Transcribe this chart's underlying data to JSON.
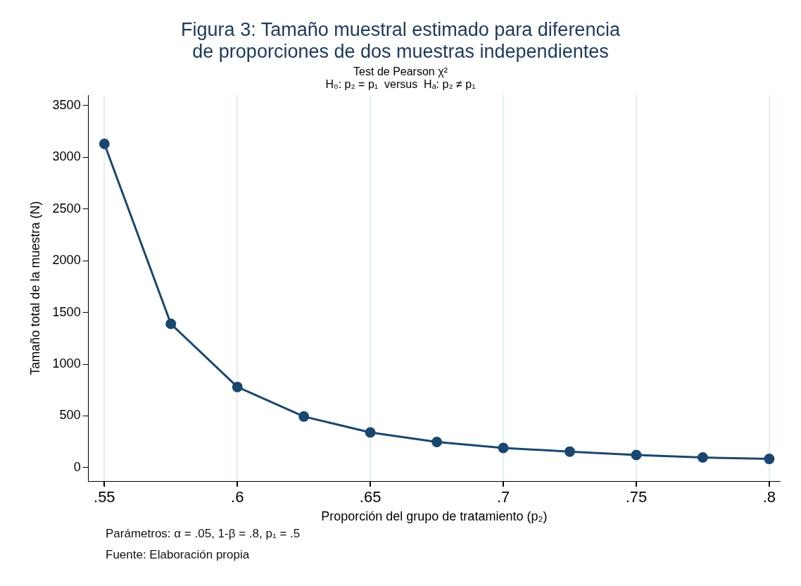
{
  "chart_data": {
    "type": "line",
    "title": "Figura 3: Tamaño muestral estimado para diferencia\nde proporciones de dos muestras independientes",
    "subtitle": "Test de Pearson χ²\nH₀: p₂ = p₁  versus  Hₐ: p₂ ≠ p₁",
    "xlabel": "Proporción del grupo de tratamiento (p₂)",
    "ylabel": "Tamaño total de la muestra (N)",
    "x": [
      0.55,
      0.575,
      0.6,
      0.625,
      0.65,
      0.675,
      0.7,
      0.725,
      0.75,
      0.775,
      0.8
    ],
    "series": [
      {
        "color": "#1a476f",
        "values": [
          3130,
          1390,
          780,
          494,
          340,
          248,
          190,
          155,
          122,
          98,
          84
        ]
      }
    ],
    "xlim": [
      0.544,
      0.804
    ],
    "xticks": [
      {
        "value": 0.55,
        "label": ".55"
      },
      {
        "value": 0.6,
        "label": ".6"
      },
      {
        "value": 0.65,
        "label": ".65"
      },
      {
        "value": 0.7,
        "label": ".7"
      },
      {
        "value": 0.75,
        "label": ".75"
      },
      {
        "value": 0.8,
        "label": ".8"
      }
    ],
    "ylim": [
      -130,
      3600
    ],
    "yticks": [
      0,
      500,
      1000,
      1500,
      2000,
      2500,
      3000,
      3500
    ],
    "grid": "x",
    "legend": false,
    "marker": "circle",
    "line_style": "solid",
    "annotations": [
      "Parámetros: α = .05, 1-β = .8, p₁ = .5",
      "Fuente: Elaboración propia"
    ]
  }
}
